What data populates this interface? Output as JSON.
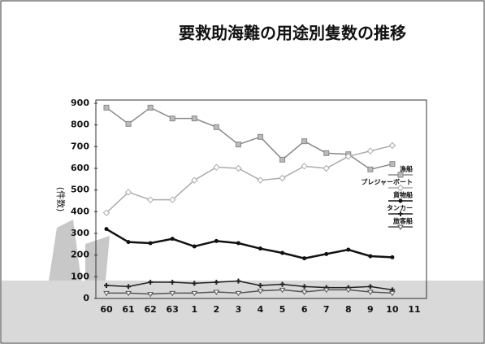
{
  "chart_data": {
    "type": "line",
    "title": "要救助海難の用途別隻数の推移",
    "y_label": "(件数)",
    "categories": [
      "60",
      "61",
      "62",
      "63",
      "1",
      "2",
      "3",
      "4",
      "5",
      "6",
      "7",
      "8",
      "9",
      "10",
      "11"
    ],
    "ylim": [
      0,
      900
    ],
    "yticks": [
      0,
      100,
      200,
      300,
      400,
      500,
      600,
      700,
      800,
      900
    ],
    "series": [
      {
        "name": "漁船",
        "color": "#888888",
        "marker": "square",
        "values": [
          880,
          805,
          880,
          830,
          830,
          790,
          710,
          745,
          640,
          725,
          670,
          665,
          595,
          620,
          null
        ]
      },
      {
        "name": "プレジャーボート",
        "color": "#aaaaaa",
        "marker": "diamond",
        "values": [
          395,
          490,
          455,
          455,
          545,
          605,
          600,
          545,
          555,
          610,
          600,
          655,
          680,
          705,
          null
        ]
      },
      {
        "name": "貨物船",
        "color": "#111111",
        "marker": "circle",
        "values": [
          320,
          260,
          255,
          275,
          240,
          265,
          255,
          230,
          210,
          185,
          205,
          225,
          195,
          190,
          null
        ]
      },
      {
        "name": "タンカー",
        "color": "#222222",
        "marker": "plus",
        "values": [
          60,
          55,
          75,
          75,
          70,
          75,
          80,
          60,
          65,
          55,
          50,
          50,
          55,
          40,
          null
        ]
      },
      {
        "name": "旅客船",
        "color": "#555555",
        "marker": "triangle-down",
        "values": [
          25,
          25,
          20,
          25,
          25,
          30,
          25,
          35,
          40,
          30,
          40,
          40,
          30,
          25,
          null
        ]
      }
    ]
  }
}
